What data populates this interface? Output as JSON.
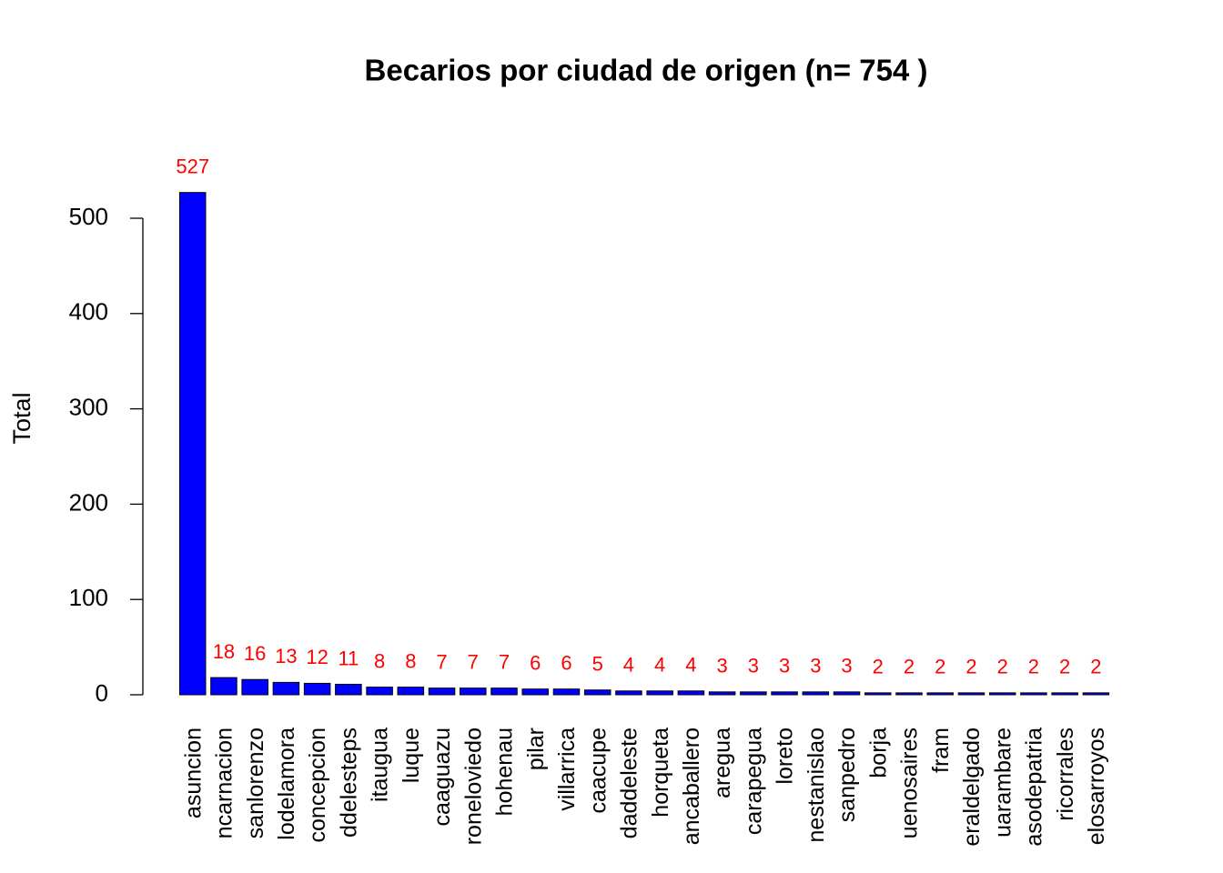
{
  "chart_data": {
    "type": "bar",
    "title": "Becarios por ciudad de origen (n= 754 )",
    "y_label": "Total",
    "categories": [
      "asuncion",
      "ncarnacion",
      "sanlorenzo",
      "lodelamora",
      "concepcion",
      "ddelesteps",
      "itaugua",
      "luque",
      "caaguazu",
      "roneloviedo",
      "hohenau",
      "pilar",
      "villarrica",
      "caacupe",
      "daddeleste",
      "horqueta",
      "ancaballero",
      "aregua",
      "carapegua",
      "loreto",
      "nestanislao",
      "sanpedro",
      "borja",
      "uenosaires",
      "fram",
      "eraldelgado",
      "uarambare",
      "asodepatria",
      "ricorrales",
      "elosarroyos"
    ],
    "values": [
      527,
      18,
      16,
      13,
      12,
      11,
      8,
      8,
      7,
      7,
      7,
      6,
      6,
      5,
      4,
      4,
      4,
      3,
      3,
      3,
      3,
      3,
      2,
      2,
      2,
      2,
      2,
      2,
      2,
      2
    ],
    "color": "#0000ff",
    "value_label_color": "#ff0000",
    "ylim": [
      0,
      600
    ],
    "yticks": [
      0,
      100,
      200,
      300,
      400,
      500
    ],
    "grid": false
  }
}
